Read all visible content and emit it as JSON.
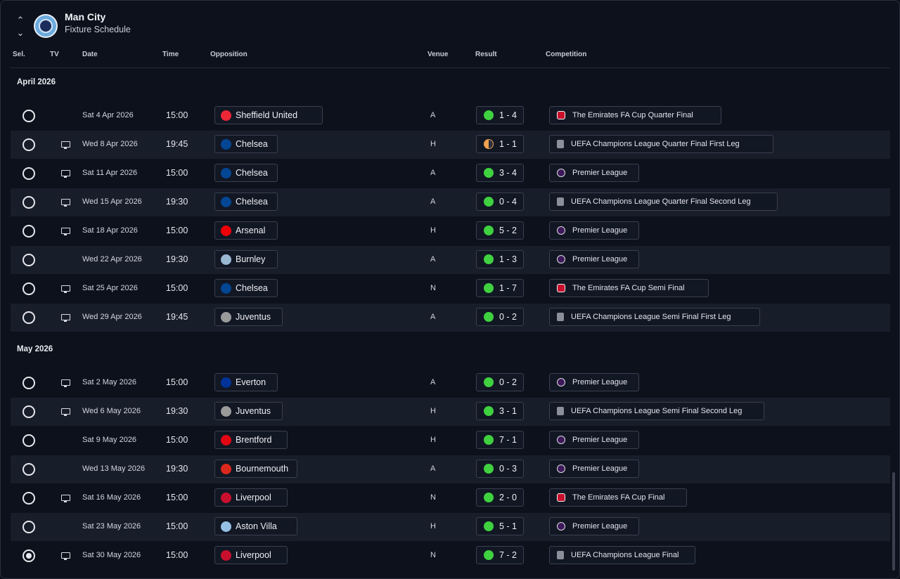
{
  "header": {
    "team_name": "Man City",
    "subtitle": "Fixture Schedule",
    "up_arrow": "⌃",
    "down_arrow": "⌄"
  },
  "columns": {
    "sel": "Sel.",
    "tv": "TV",
    "date": "Date",
    "time": "Time",
    "opposition": "Opposition",
    "venue": "Venue",
    "result": "Result",
    "competition": "Competition"
  },
  "sections": [
    {
      "title": "April 2026",
      "fixtures": [
        {
          "tv": false,
          "date": "Sat 4 Apr 2026",
          "time": "15:00",
          "opponent": "Sheffield United",
          "opp_color": "#ee2737",
          "venue": "A",
          "result": "1 - 4",
          "outcome": "win",
          "competition": "The Emirates FA Cup Quarter Final",
          "comp_type": "fa",
          "selected": false
        },
        {
          "tv": true,
          "date": "Wed 8 Apr 2026",
          "time": "19:45",
          "opponent": "Chelsea",
          "opp_color": "#034694",
          "venue": "H",
          "result": "1 - 1",
          "outcome": "draw",
          "competition": "UEFA Champions League Quarter Final First Leg",
          "comp_type": "ucl",
          "selected": false
        },
        {
          "tv": true,
          "date": "Sat 11 Apr 2026",
          "time": "15:00",
          "opponent": "Chelsea",
          "opp_color": "#034694",
          "venue": "A",
          "result": "3 - 4",
          "outcome": "win",
          "competition": "Premier League",
          "comp_type": "pl",
          "selected": false
        },
        {
          "tv": true,
          "date": "Wed 15 Apr 2026",
          "time": "19:30",
          "opponent": "Chelsea",
          "opp_color": "#034694",
          "venue": "A",
          "result": "0 - 4",
          "outcome": "win",
          "competition": "UEFA Champions League Quarter Final Second Leg",
          "comp_type": "ucl",
          "selected": false
        },
        {
          "tv": true,
          "date": "Sat 18 Apr 2026",
          "time": "15:00",
          "opponent": "Arsenal",
          "opp_color": "#ef0107",
          "venue": "H",
          "result": "5 - 2",
          "outcome": "win",
          "competition": "Premier League",
          "comp_type": "pl",
          "selected": false
        },
        {
          "tv": false,
          "date": "Wed 22 Apr 2026",
          "time": "19:30",
          "opponent": "Burnley",
          "opp_color": "#9bb8d3",
          "venue": "A",
          "result": "1 - 3",
          "outcome": "win",
          "competition": "Premier League",
          "comp_type": "pl",
          "selected": false
        },
        {
          "tv": true,
          "date": "Sat 25 Apr 2026",
          "time": "15:00",
          "opponent": "Chelsea",
          "opp_color": "#034694",
          "venue": "N",
          "result": "1 - 7",
          "outcome": "win",
          "competition": "The Emirates FA Cup Semi Final",
          "comp_type": "fa",
          "selected": false
        },
        {
          "tv": true,
          "date": "Wed 29 Apr 2026",
          "time": "19:45",
          "opponent": "Juventus",
          "opp_color": "#9a9a9a",
          "venue": "A",
          "result": "0 - 2",
          "outcome": "win",
          "competition": "UEFA Champions League Semi Final First Leg",
          "comp_type": "ucl",
          "selected": false
        }
      ]
    },
    {
      "title": "May 2026",
      "fixtures": [
        {
          "tv": true,
          "date": "Sat 2 May 2026",
          "time": "15:00",
          "opponent": "Everton",
          "opp_color": "#003399",
          "venue": "A",
          "result": "0 - 2",
          "outcome": "win",
          "competition": "Premier League",
          "comp_type": "pl",
          "selected": false
        },
        {
          "tv": true,
          "date": "Wed 6 May 2026",
          "time": "19:30",
          "opponent": "Juventus",
          "opp_color": "#9a9a9a",
          "venue": "H",
          "result": "3 - 1",
          "outcome": "win",
          "competition": "UEFA Champions League Semi Final Second Leg",
          "comp_type": "ucl",
          "selected": false
        },
        {
          "tv": false,
          "date": "Sat 9 May 2026",
          "time": "15:00",
          "opponent": "Brentford",
          "opp_color": "#e30613",
          "venue": "H",
          "result": "7 - 1",
          "outcome": "win",
          "competition": "Premier League",
          "comp_type": "pl",
          "selected": false
        },
        {
          "tv": false,
          "date": "Wed 13 May 2026",
          "time": "19:30",
          "opponent": "Bournemouth",
          "opp_color": "#da291c",
          "venue": "A",
          "result": "0 - 3",
          "outcome": "win",
          "competition": "Premier League",
          "comp_type": "pl",
          "selected": false
        },
        {
          "tv": true,
          "date": "Sat 16 May 2026",
          "time": "15:00",
          "opponent": "Liverpool",
          "opp_color": "#c8102e",
          "venue": "N",
          "result": "2 - 0",
          "outcome": "win",
          "competition": "The Emirates FA Cup Final",
          "comp_type": "fa",
          "selected": false
        },
        {
          "tv": false,
          "date": "Sat 23 May 2026",
          "time": "15:00",
          "opponent": "Aston Villa",
          "opp_color": "#95bfe5",
          "venue": "H",
          "result": "5 - 1",
          "outcome": "win",
          "competition": "Premier League",
          "comp_type": "pl",
          "selected": false
        },
        {
          "tv": true,
          "date": "Sat 30 May 2026",
          "time": "15:00",
          "opponent": "Liverpool",
          "opp_color": "#c8102e",
          "venue": "N",
          "result": "7 - 2",
          "outcome": "win",
          "competition": "UEFA Champions League Final",
          "comp_type": "ucl",
          "selected": true
        }
      ]
    }
  ]
}
